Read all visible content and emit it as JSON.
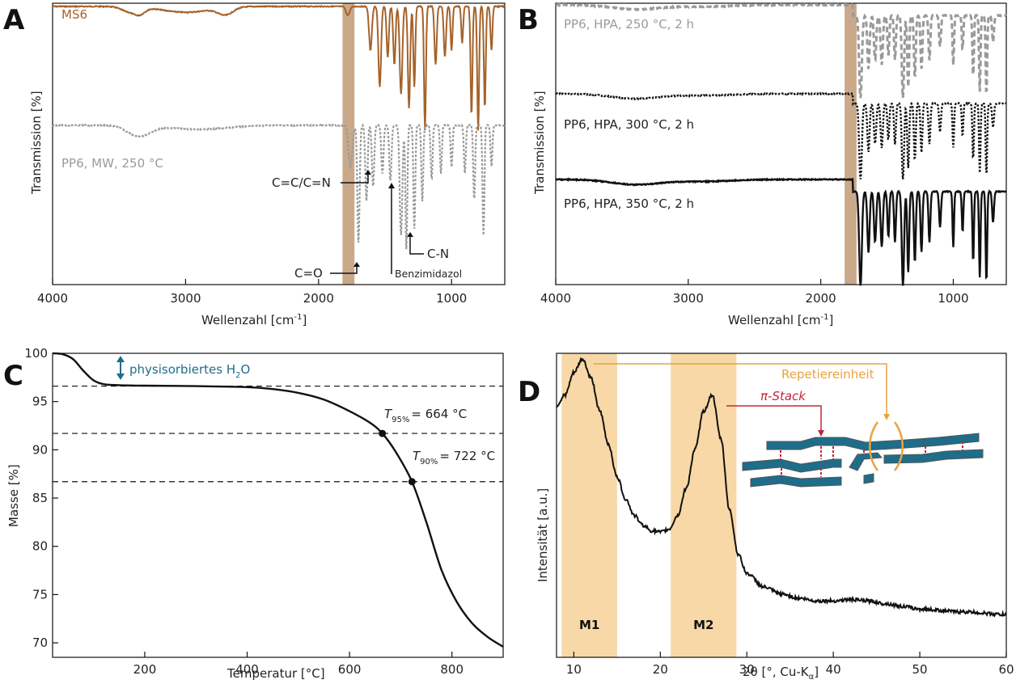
{
  "colors": {
    "brown": "#a5622a",
    "gray": "#9a9a9a",
    "black": "#111111",
    "band_tan": "#c9a98a",
    "band_orange": "#f7d8a6",
    "teal": "#1e6d8a",
    "red": "#c0283a",
    "orange": "#e8a33d"
  },
  "chart_data": [
    {
      "type": "line",
      "panel": "A",
      "xlabel": "Wellenzahl [cm",
      "xlabel_sup": "-1",
      "xlabel_end": "]",
      "ylabel": "Transmission [%]",
      "xlim": [
        4000,
        600
      ],
      "xticks": [
        "4000",
        "3000",
        "2000",
        "1000"
      ],
      "xtick_values": [
        4000,
        3000,
        2000,
        1000
      ],
      "band": [
        1820,
        1730
      ],
      "series": [
        {
          "name": "MS6",
          "style": "solid",
          "color": "brown",
          "baseline": 0.96,
          "dips": [
            [
              3440,
              0.03,
              70
            ],
            [
              3350,
              0.05,
              60
            ],
            [
              3000,
              0.04,
              250
            ],
            [
              2700,
              0.05,
              80
            ],
            [
              1780,
              0.06,
              20
            ],
            [
              1610,
              0.3,
              15
            ],
            [
              1540,
              0.55,
              14
            ],
            [
              1480,
              0.35,
              12
            ],
            [
              1430,
              0.4,
              12
            ],
            [
              1380,
              0.6,
              14
            ],
            [
              1320,
              0.7,
              12
            ],
            [
              1280,
              0.55,
              10
            ],
            [
              1200,
              0.85,
              10
            ],
            [
              1120,
              0.4,
              12
            ],
            [
              1050,
              0.35,
              12
            ],
            [
              1000,
              0.3,
              10
            ],
            [
              920,
              0.25,
              10
            ],
            [
              850,
              0.75,
              10
            ],
            [
              800,
              0.85,
              10
            ],
            [
              750,
              0.7,
              10
            ],
            [
              700,
              0.3,
              10
            ]
          ]
        },
        {
          "name": "PP6, MW, 250 °C",
          "style": "dashed",
          "color": "gray",
          "baseline": 0.96,
          "dips": [
            [
              3350,
              0.08,
              120
            ],
            [
              2900,
              0.03,
              300
            ],
            [
              1760,
              0.3,
              20
            ],
            [
              1700,
              0.85,
              12
            ],
            [
              1640,
              0.55,
              12
            ],
            [
              1590,
              0.45,
              12
            ],
            [
              1520,
              0.35,
              12
            ],
            [
              1460,
              0.4,
              12
            ],
            [
              1380,
              0.8,
              14
            ],
            [
              1340,
              0.9,
              10
            ],
            [
              1280,
              0.75,
              10
            ],
            [
              1220,
              0.55,
              10
            ],
            [
              1150,
              0.4,
              10
            ],
            [
              1080,
              0.35,
              10
            ],
            [
              1000,
              0.3,
              10
            ],
            [
              900,
              0.35,
              10
            ],
            [
              830,
              0.55,
              10
            ],
            [
              760,
              0.8,
              10
            ],
            [
              700,
              0.3,
              10
            ]
          ]
        }
      ],
      "labels": [
        "MS6",
        "PP6, MW, 250 °C"
      ],
      "annotations": [
        "C=C/C=N",
        "C=O",
        "C-N",
        "Benzimidazol"
      ]
    },
    {
      "type": "line",
      "panel": "B",
      "xlabel": "Wellenzahl [cm",
      "xlabel_sup": "-1",
      "xlabel_end": "]",
      "ylabel": "Transmission [%]",
      "xlim": [
        4000,
        600
      ],
      "xticks": [
        "4000",
        "3000",
        "2000",
        "1000"
      ],
      "xtick_values": [
        4000,
        3000,
        2000,
        1000
      ],
      "band": [
        1820,
        1730
      ],
      "series": [
        {
          "name": "PP6, HPA, 250 °C, 2 h",
          "style": "dashed",
          "color": "gray"
        },
        {
          "name": "PP6, HPA, 300 °C, 2 h",
          "style": "dotted",
          "color": "black"
        },
        {
          "name": "PP6, HPA, 350 °C, 2 h",
          "style": "solid",
          "color": "black"
        }
      ],
      "labels": [
        "PP6, HPA, 250 °C, 2 h",
        "PP6, HPA, 300 °C, 2 h",
        "PP6, HPA, 350 °C, 2 h"
      ]
    },
    {
      "type": "line",
      "panel": "C",
      "xlabel": "Temperatur [°C]",
      "ylabel": "Masse [%]",
      "xlim": [
        20,
        900
      ],
      "ylim": [
        68.5,
        100
      ],
      "xticks": [
        "200",
        "400",
        "600",
        "800"
      ],
      "xtick_values": [
        200,
        400,
        600,
        800
      ],
      "yticks": [
        "70",
        "75",
        "80",
        "85",
        "90",
        "95",
        "100"
      ],
      "ytick_values": [
        70,
        75,
        80,
        85,
        90,
        95,
        100
      ],
      "x": [
        20,
        40,
        60,
        80,
        100,
        120,
        150,
        200,
        300,
        400,
        450,
        500,
        550,
        600,
        640,
        664,
        690,
        722,
        750,
        780,
        810,
        840,
        870,
        900
      ],
      "y": [
        100,
        99.9,
        99.4,
        98.2,
        97.2,
        96.8,
        96.7,
        96.65,
        96.6,
        96.5,
        96.3,
        95.9,
        95.2,
        94.0,
        92.8,
        91.7,
        89.8,
        86.7,
        82.5,
        77.5,
        74.2,
        72.0,
        70.6,
        69.6
      ],
      "hlines": [
        96.6,
        91.7,
        86.7
      ],
      "markers": [
        {
          "x": 664,
          "y": 91.7
        },
        {
          "x": 722,
          "y": 86.7
        }
      ],
      "annotations": {
        "physisorbed": "physisorbiertes H",
        "physisorbed_sub": "2",
        "physisorbed_end": "O",
        "t95": "T",
        "t95_sub": "95%",
        "t95_val": "= 664 °C",
        "t90": "T",
        "t90_sub": "90%",
        "t90_val": "= 722 °C"
      }
    },
    {
      "type": "line",
      "panel": "D",
      "xlabel": "2θ [°, Cu-K",
      "xlabel_sub": "α",
      "xlabel_end": "]",
      "ylabel": "Intensität [a.u.]",
      "xlim": [
        8,
        60
      ],
      "xticks": [
        "10",
        "20",
        "30",
        "40",
        "50",
        "60"
      ],
      "xtick_values": [
        10,
        20,
        30,
        40,
        50,
        60
      ],
      "x": [
        8,
        9,
        10,
        11,
        12,
        13,
        14,
        15,
        16,
        17,
        18,
        19,
        20,
        21,
        22,
        23,
        24,
        25,
        26,
        27,
        28,
        29,
        30,
        32,
        34,
        36,
        38,
        40,
        42,
        44,
        46,
        48,
        50,
        55,
        60
      ],
      "y": [
        0.78,
        0.82,
        0.9,
        0.95,
        0.88,
        0.76,
        0.64,
        0.52,
        0.44,
        0.38,
        0.345,
        0.325,
        0.32,
        0.33,
        0.38,
        0.48,
        0.62,
        0.76,
        0.82,
        0.66,
        0.4,
        0.24,
        0.17,
        0.12,
        0.095,
        0.08,
        0.07,
        0.07,
        0.075,
        0.07,
        0.06,
        0.05,
        0.04,
        0.03,
        0.02
      ],
      "bands": [
        {
          "label": "M1",
          "range": [
            8.6,
            15
          ]
        },
        {
          "label": "M2",
          "range": [
            21.2,
            28.8
          ]
        }
      ],
      "annotations": {
        "repeat": "Repetiereinheit",
        "stack": "π-Stack"
      }
    }
  ]
}
